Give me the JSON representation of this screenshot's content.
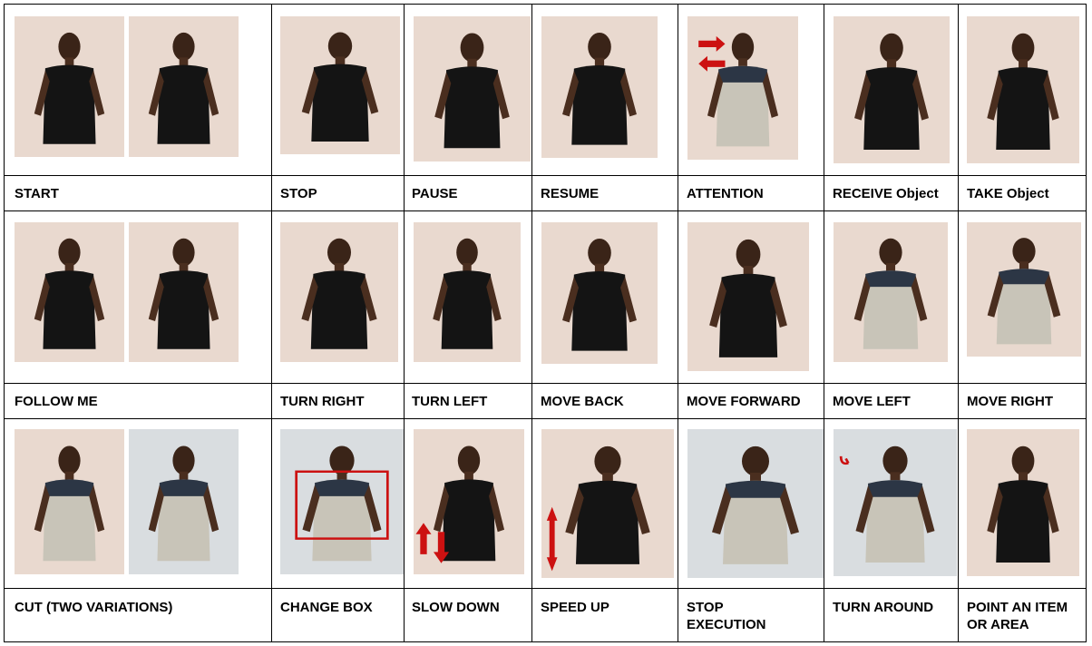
{
  "rows": [
    {
      "cells": [
        {
          "label": "START"
        },
        {
          "label": "STOP"
        },
        {
          "label": "PAUSE"
        },
        {
          "label": "RESUME"
        },
        {
          "label": "ATTENTION"
        },
        {
          "label": "RECEIVE Object"
        },
        {
          "label": "TAKE Object"
        }
      ]
    },
    {
      "cells": [
        {
          "label": "FOLLOW ME"
        },
        {
          "label": "TURN RIGHT"
        },
        {
          "label": "TURN LEFT"
        },
        {
          "label": "MOVE BACK"
        },
        {
          "label": "MOVE FORWARD"
        },
        {
          "label": "MOVE LEFT"
        },
        {
          "label": "MOVE RIGHT"
        }
      ]
    },
    {
      "cells": [
        {
          "label": "CUT (TWO VARIATIONS)"
        },
        {
          "label": "CHANGE BOX"
        },
        {
          "label": "SLOW DOWN"
        },
        {
          "label": "SPEED UP"
        },
        {
          "label": "STOP EXECUTION"
        },
        {
          "label": "TURN AROUND"
        },
        {
          "label": "POINT AN ITEM OR AREA"
        }
      ]
    }
  ],
  "colors": {
    "grid": "#000000",
    "arrow": "#cc1111",
    "shirt_black": "#141414",
    "shirt_gray": "#c8c4b8",
    "wall": "#e9d9cf"
  },
  "icons": [
    "person-photo",
    "red-arrow-icon",
    "red-box-icon",
    "double-arrow-icon"
  ]
}
